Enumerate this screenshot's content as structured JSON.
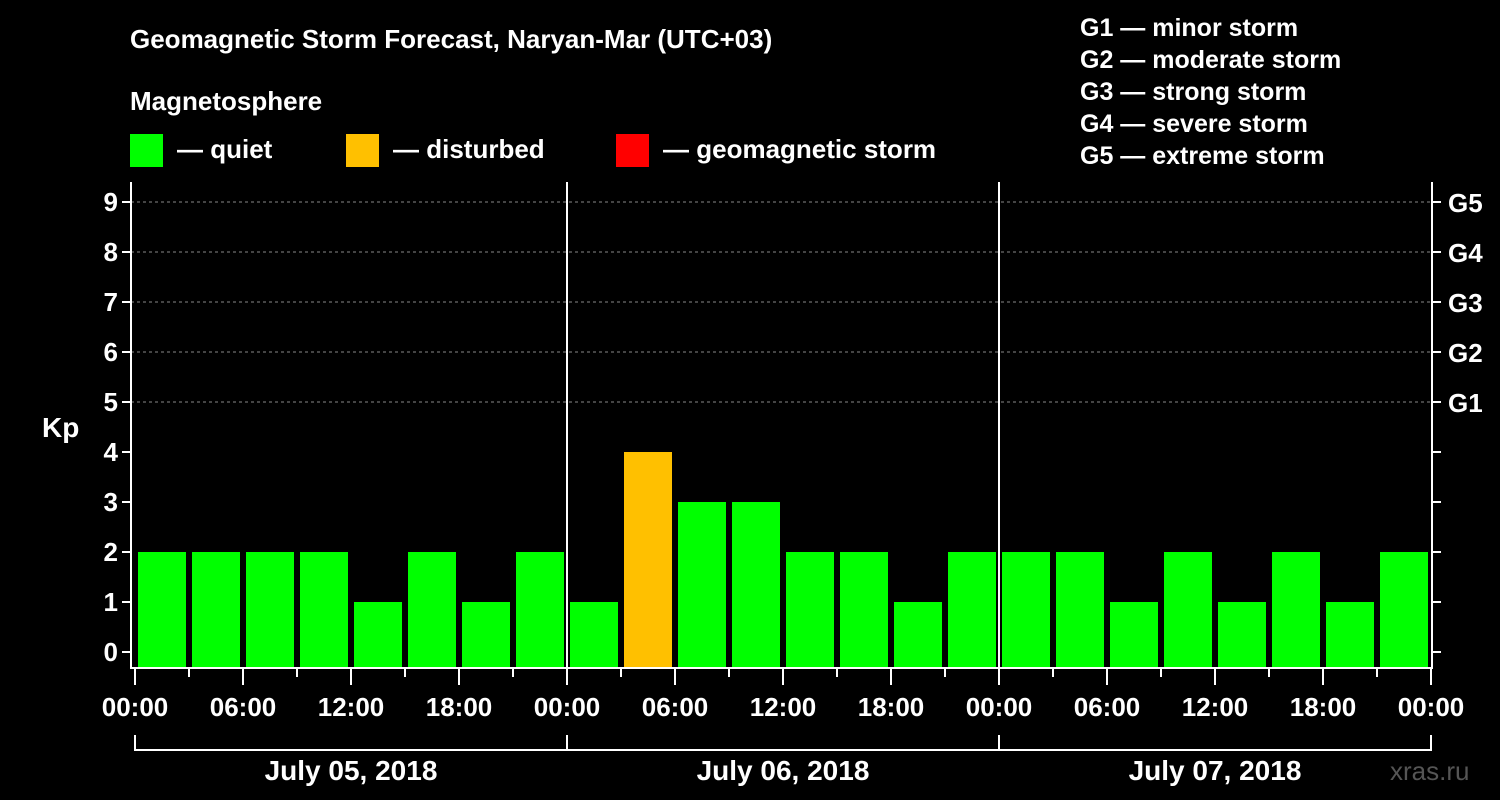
{
  "header": {
    "title": "Geomagnetic Storm Forecast, Naryan-Mar (UTC+03)",
    "subtitle": "Magnetosphere"
  },
  "legend": [
    {
      "label": "— quiet",
      "color": "#00ff00"
    },
    {
      "label": "— disturbed",
      "color": "#ffc000"
    },
    {
      "label": "— geomagnetic storm",
      "color": "#ff0000"
    }
  ],
  "g_scale": [
    "G1 — minor storm",
    "G2 — moderate storm",
    "G3 — strong storm",
    "G4 — severe storm",
    "G5 — extreme storm"
  ],
  "watermark": "xras.ru",
  "chart_data": {
    "type": "bar",
    "title": "Geomagnetic Storm Forecast, Naryan-Mar (UTC+03)",
    "ylabel": "Kp",
    "ylim": [
      0,
      9
    ],
    "yticks": [
      "0",
      "1",
      "2",
      "3",
      "4",
      "5",
      "6",
      "7",
      "8",
      "9"
    ],
    "right_ticks": [
      {
        "kp": 5,
        "label": "G1"
      },
      {
        "kp": 6,
        "label": "G2"
      },
      {
        "kp": 7,
        "label": "G3"
      },
      {
        "kp": 8,
        "label": "G4"
      },
      {
        "kp": 9,
        "label": "G5"
      }
    ],
    "xticks": [
      "00:00",
      "06:00",
      "12:00",
      "18:00",
      "00:00",
      "06:00",
      "12:00",
      "18:00",
      "00:00",
      "06:00",
      "12:00",
      "18:00",
      "00:00"
    ],
    "days": [
      "July 05, 2018",
      "July 06, 2018",
      "July 07, 2018"
    ],
    "interval_hours": 3,
    "values": [
      2,
      2,
      2,
      2,
      1,
      2,
      1,
      2,
      1,
      4,
      3,
      3,
      2,
      2,
      1,
      2,
      2,
      2,
      1,
      2,
      1,
      2,
      1,
      2
    ],
    "colors": {
      "quiet": "#00ff00",
      "disturbed": "#ffc000",
      "storm": "#ff0000"
    },
    "grid": "dashed Kp 5-9"
  }
}
